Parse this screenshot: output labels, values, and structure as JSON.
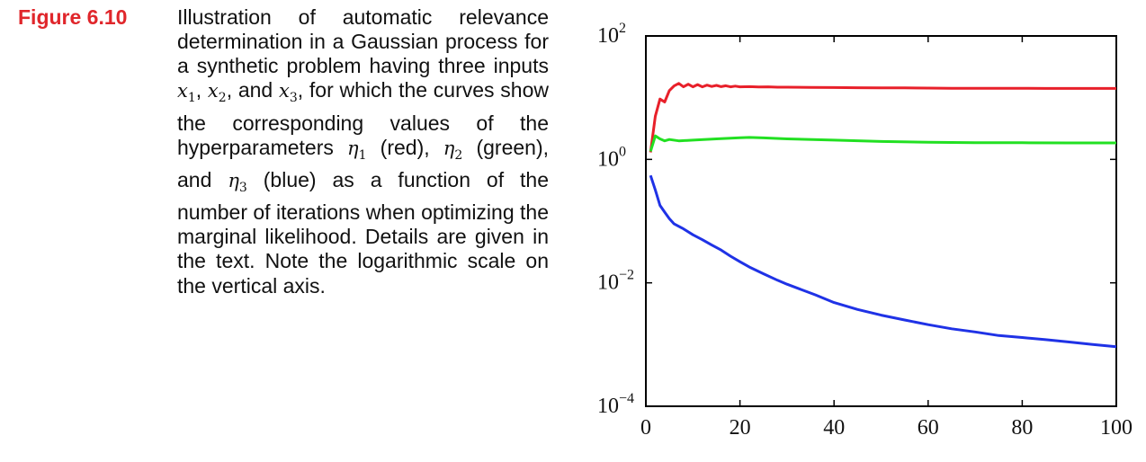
{
  "figure": {
    "label": "Figure 6.10",
    "caption_parts": {
      "p1": "Illustration of automatic relevance determination in a Gaussian process for a synthetic problem having three inputs ",
      "x_sym": "x",
      "x1_sub": "1",
      "sep1": ", ",
      "x2_sub": "2",
      "sep2": ", and ",
      "x3_sub": "3",
      "p2": ", for which the curves show the corresponding values of the hyperparameters ",
      "eta_sym": "η",
      "eta1_sub": "1",
      "red": " (red), ",
      "eta2_sub": "2",
      "green": " (green), and ",
      "eta3_sub": "3",
      "p3": " (blue) as a function of the number of iterations when optimizing the marginal likelihood.  Details are given in the text.  Note the logarithmic scale on the vertical axis."
    }
  },
  "chart_data": {
    "type": "line",
    "title": "",
    "xlabel": "",
    "ylabel": "",
    "xlim": [
      0,
      100
    ],
    "ylim": [
      0.0001,
      100
    ],
    "yscale": "log",
    "grid": false,
    "x_ticks": [
      0,
      20,
      40,
      60,
      80,
      100
    ],
    "x_tick_labels": [
      "0",
      "20",
      "40",
      "60",
      "80",
      "100"
    ],
    "y_ticks": [
      0.0001,
      0.01,
      1,
      100
    ],
    "y_tick_labels": [
      {
        "base": "10",
        "exp": "−4"
      },
      {
        "base": "10",
        "exp": "−2"
      },
      {
        "base": "10",
        "exp": "0"
      },
      {
        "base": "10",
        "exp": "2"
      }
    ],
    "series": [
      {
        "color": "#e8202a",
        "x": [
          1,
          2,
          3,
          4,
          5,
          6,
          7,
          8,
          9,
          10,
          11,
          12,
          13,
          14,
          15,
          16,
          17,
          18,
          19,
          20,
          22,
          24,
          26,
          28,
          30,
          35,
          40,
          45,
          50,
          55,
          60,
          65,
          70,
          75,
          80,
          85,
          90,
          95,
          100
        ],
        "y": [
          1.3,
          5,
          9.5,
          8.5,
          13,
          15.5,
          17,
          15,
          16.5,
          15,
          16.3,
          15,
          16,
          15.2,
          15.8,
          15.1,
          15.6,
          15.0,
          15.4,
          15.0,
          15.1,
          14.9,
          15.0,
          14.8,
          14.8,
          14.7,
          14.6,
          14.5,
          14.4,
          14.4,
          14.3,
          14.2,
          14.2,
          14.2,
          14.2,
          14.1,
          14.1,
          14.1,
          14.1
        ]
      },
      {
        "color": "#22e022",
        "x": [
          1,
          2,
          3,
          4,
          5,
          7,
          10,
          15,
          20,
          22,
          25,
          30,
          40,
          50,
          60,
          70,
          80,
          90,
          100
        ],
        "y": [
          1.35,
          2.4,
          2.15,
          2.0,
          2.1,
          2.0,
          2.05,
          2.15,
          2.25,
          2.27,
          2.23,
          2.15,
          2.05,
          1.95,
          1.9,
          1.87,
          1.86,
          1.85,
          1.85
        ]
      },
      {
        "color": "#1f32e6",
        "x": [
          1,
          2,
          3,
          4,
          5,
          6,
          8,
          10,
          12,
          14,
          16,
          18,
          20,
          22,
          25,
          28,
          30,
          33,
          36,
          40,
          45,
          50,
          55,
          60,
          65,
          70,
          75,
          80,
          85,
          90,
          95,
          100
        ],
        "y": [
          0.55,
          0.32,
          0.18,
          0.14,
          0.11,
          0.09,
          0.075,
          0.06,
          0.05,
          0.041,
          0.034,
          0.027,
          0.022,
          0.018,
          0.014,
          0.011,
          0.0095,
          0.0078,
          0.0064,
          0.0048,
          0.0037,
          0.003,
          0.0025,
          0.0021,
          0.0018,
          0.0016,
          0.0014,
          0.0013,
          0.0012,
          0.0011,
          0.001,
          0.00092
        ]
      }
    ]
  }
}
